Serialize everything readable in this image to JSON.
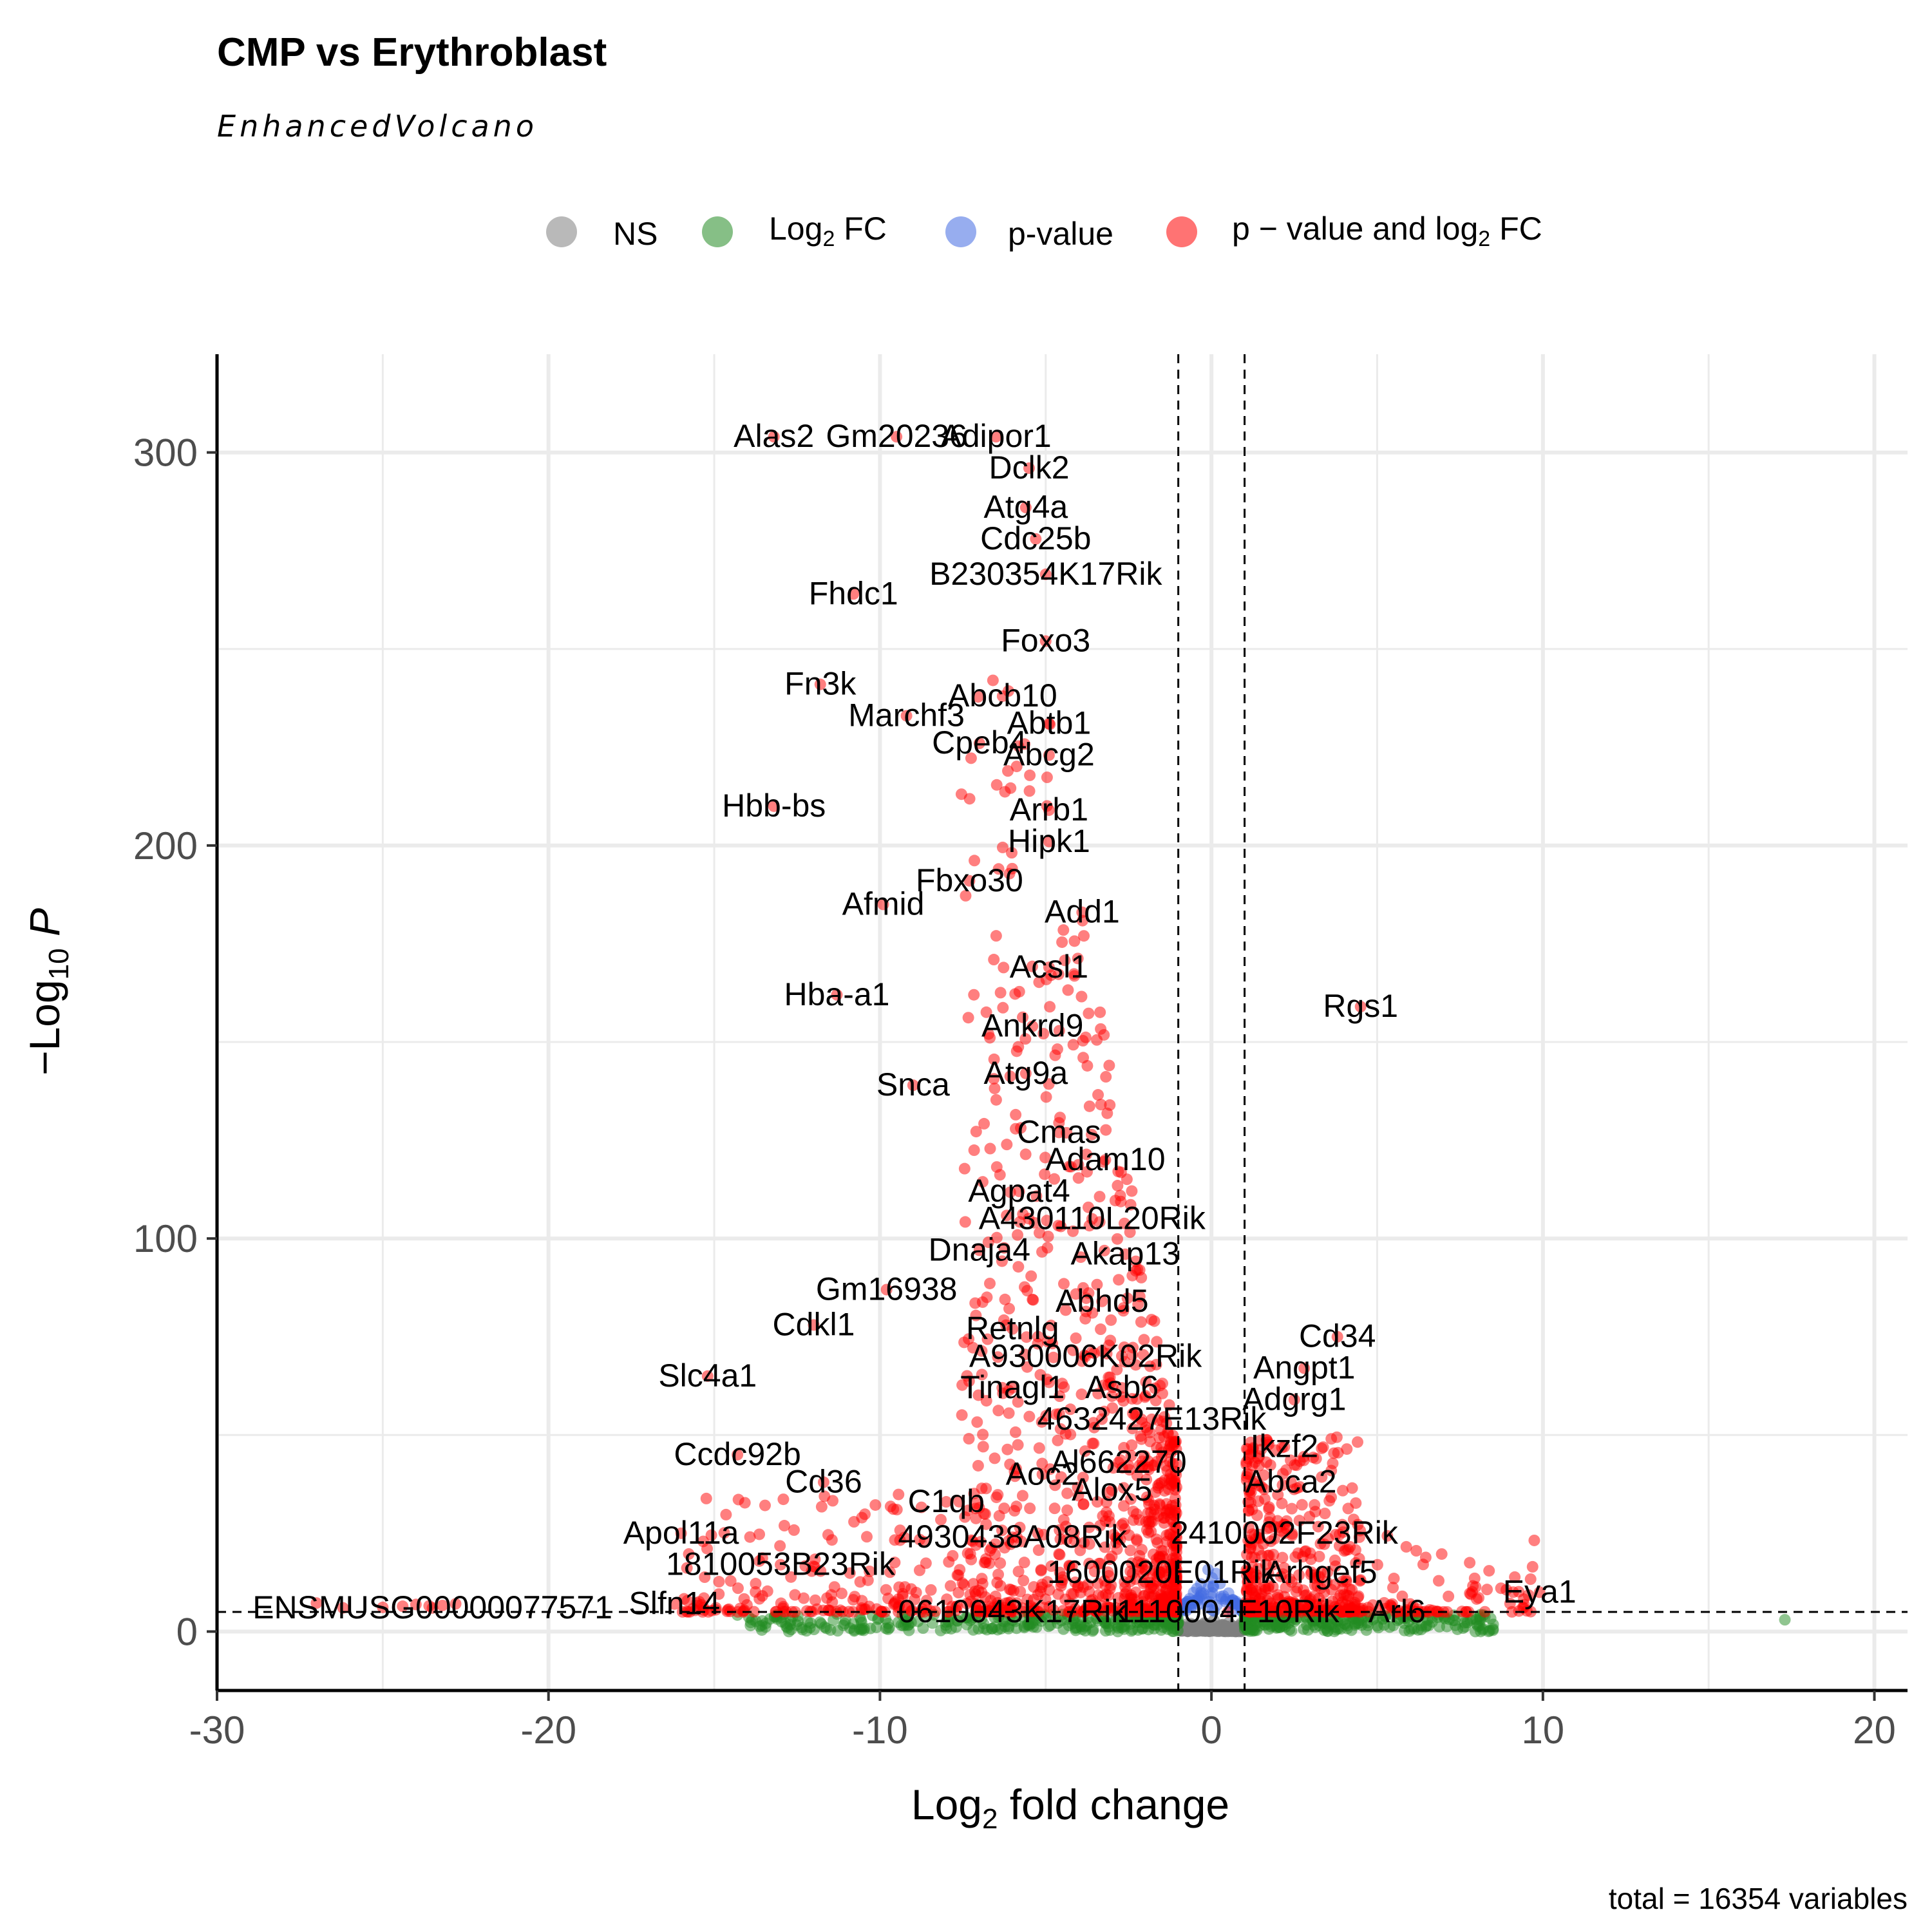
{
  "chart_data": {
    "type": "scatter",
    "title": "CMP vs Erythroblast",
    "subtitle": "EnhancedVolcano",
    "xlabel": "Log2 fold change",
    "ylabel": "-Log10 P",
    "caption": "total = 16354 variables",
    "xlim": [
      -30,
      21
    ],
    "ylim": [
      -15,
      325
    ],
    "x_ticks": [
      -30,
      -20,
      -10,
      0,
      10,
      20
    ],
    "y_ticks": [
      0,
      100,
      200,
      300
    ],
    "fc_cutoff": 1,
    "p_cutoff_y": 5,
    "legend": {
      "position": "top",
      "items": [
        {
          "key": "ns",
          "label": "NS",
          "color": "#7f7f7f"
        },
        {
          "key": "fc",
          "label": "Log2 FC",
          "base": "Log",
          "sub": "2",
          "tail": " FC",
          "color": "#228b22"
        },
        {
          "key": "p",
          "label": "p-value",
          "color": "#4169e1"
        },
        {
          "key": "both",
          "label": "p − value and log2 FC",
          "base": "p − value and log",
          "sub": "2",
          "tail": " FC",
          "color": "#ff0000"
        }
      ]
    },
    "labeled_genes": [
      {
        "label": "Alas2",
        "x": -13.2,
        "y": 304
      },
      {
        "label": "Gm20236",
        "x": -9.5,
        "y": 304
      },
      {
        "label": "Adipor1",
        "x": -6.5,
        "y": 304
      },
      {
        "label": "Dclk2",
        "x": -5.5,
        "y": 296
      },
      {
        "label": "Atg4a",
        "x": -5.6,
        "y": 286
      },
      {
        "label": "Cdc25b",
        "x": -5.3,
        "y": 278
      },
      {
        "label": "B230354K17Rik",
        "x": -5.0,
        "y": 269
      },
      {
        "label": "Fhdc1",
        "x": -10.8,
        "y": 264
      },
      {
        "label": "Foxo3",
        "x": -5.0,
        "y": 252
      },
      {
        "label": "Fn3k",
        "x": -11.8,
        "y": 241
      },
      {
        "label": "Abcb10",
        "x": -6.3,
        "y": 238
      },
      {
        "label": "Marchf3",
        "x": -9.2,
        "y": 233
      },
      {
        "label": "Abtb1",
        "x": -4.9,
        "y": 231
      },
      {
        "label": "Cpeb4",
        "x": -7.0,
        "y": 226
      },
      {
        "label": "Abcg2",
        "x": -4.9,
        "y": 223
      },
      {
        "label": "Hbb-bs",
        "x": -13.2,
        "y": 210
      },
      {
        "label": "Arrb1",
        "x": -4.9,
        "y": 209
      },
      {
        "label": "Hipk1",
        "x": -4.9,
        "y": 201
      },
      {
        "label": "Fbxo30",
        "x": -7.3,
        "y": 191
      },
      {
        "label": "Afmid",
        "x": -9.9,
        "y": 185
      },
      {
        "label": "Add1",
        "x": -3.9,
        "y": 183
      },
      {
        "label": "Acsl1",
        "x": -4.9,
        "y": 169
      },
      {
        "label": "Hba-a1",
        "x": -11.3,
        "y": 162
      },
      {
        "label": "Rgs1",
        "x": 4.5,
        "y": 159
      },
      {
        "label": "Ankrd9",
        "x": -5.4,
        "y": 154
      },
      {
        "label": "Atg9a",
        "x": -5.6,
        "y": 142
      },
      {
        "label": "Snca",
        "x": -9.0,
        "y": 139
      },
      {
        "label": "Cmas",
        "x": -4.6,
        "y": 127
      },
      {
        "label": "Adam10",
        "x": -3.2,
        "y": 120
      },
      {
        "label": "Agpat4",
        "x": -5.8,
        "y": 112
      },
      {
        "label": "A430110L20Rik",
        "x": -3.6,
        "y": 105
      },
      {
        "label": "Dnaja4",
        "x": -7.0,
        "y": 97
      },
      {
        "label": "Akap13",
        "x": -2.6,
        "y": 96
      },
      {
        "label": "Gm16938",
        "x": -9.8,
        "y": 87
      },
      {
        "label": "Abhd5",
        "x": -3.3,
        "y": 84
      },
      {
        "label": "Cdkl1",
        "x": -12.0,
        "y": 78
      },
      {
        "label": "Retnlg",
        "x": -6.0,
        "y": 77
      },
      {
        "label": "Cd34",
        "x": 3.8,
        "y": 75
      },
      {
        "label": "A930006K02Rik",
        "x": -3.8,
        "y": 70
      },
      {
        "label": "Angpt1",
        "x": 2.8,
        "y": 67
      },
      {
        "label": "Slc4a1",
        "x": -15.2,
        "y": 65
      },
      {
        "label": "Tinagl1",
        "x": -6.0,
        "y": 62
      },
      {
        "label": "Asb6",
        "x": -2.7,
        "y": 62
      },
      {
        "label": "Adgrg1",
        "x": 2.5,
        "y": 59
      },
      {
        "label": "4632427E13Rik",
        "x": -1.8,
        "y": 54
      },
      {
        "label": "Ikzf2",
        "x": 2.2,
        "y": 47
      },
      {
        "label": "Ccdc92b",
        "x": -14.3,
        "y": 45
      },
      {
        "label": "Al662270",
        "x": -2.8,
        "y": 43
      },
      {
        "label": "Aoc2",
        "x": -5.1,
        "y": 40
      },
      {
        "label": "Abca2",
        "x": 2.4,
        "y": 38
      },
      {
        "label": "Cd36",
        "x": -11.7,
        "y": 38
      },
      {
        "label": "Alox5",
        "x": -3.0,
        "y": 36
      },
      {
        "label": "C1qb",
        "x": -8.0,
        "y": 33
      },
      {
        "label": "Apol11a",
        "x": -16.0,
        "y": 25
      },
      {
        "label": "2410002F23Rik",
        "x": 2.2,
        "y": 25
      },
      {
        "label": "4930438A08Rik",
        "x": -6.0,
        "y": 24
      },
      {
        "label": "1810053B23Rik",
        "x": -13.0,
        "y": 17
      },
      {
        "label": "Arrhgef5",
        "x": 3.3,
        "y": 15
      },
      {
        "label": "1600020E01Rik",
        "x": -1.5,
        "y": 15
      },
      {
        "label": "Eya1",
        "x": 9.9,
        "y": 10
      },
      {
        "label": "ENSMUSG00000077571",
        "x": -23.5,
        "y": 6
      },
      {
        "label": "Slfn14",
        "x": -16.2,
        "y": 7
      },
      {
        "label": "0610043K17Rik",
        "x": -6.0,
        "y": 5
      },
      {
        "label": "1110004F10Rik",
        "x": 0.5,
        "y": 5
      },
      {
        "label": "Arl6",
        "x": 5.6,
        "y": 5
      }
    ],
    "label_text": {
      "Arrhgef5": "Arhgef5"
    }
  }
}
